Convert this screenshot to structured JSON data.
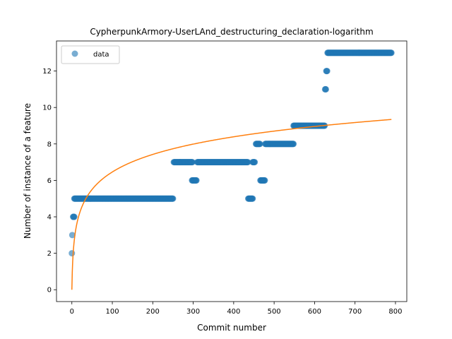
{
  "chart_data": {
    "type": "scatter",
    "title": "CypherpunkArmory-UserLAnd_destructuring_declaration-logarithm",
    "xlabel": "Commit number",
    "ylabel": "Number of instance of a feature",
    "xlim": [
      -38,
      828
    ],
    "ylim": [
      -0.65,
      13.65
    ],
    "xticks": [
      0,
      100,
      200,
      300,
      400,
      500,
      600,
      700,
      800
    ],
    "yticks": [
      0,
      2,
      4,
      6,
      8,
      10,
      12
    ],
    "grid": false,
    "legend": {
      "position": "top-left",
      "entries": [
        "data"
      ]
    },
    "colors": {
      "points": "#1f77b4",
      "fit": "#ff7f0e"
    },
    "series": [
      {
        "name": "data",
        "kind": "scatter",
        "segments": [
          {
            "x_start": 0,
            "x_end": 0,
            "y": 2
          },
          {
            "x_start": 1,
            "x_end": 1,
            "y": 3
          },
          {
            "x_start": 3,
            "x_end": 6,
            "y": 4
          },
          {
            "x_start": 6,
            "x_end": 250,
            "y": 5
          },
          {
            "x_start": 252,
            "x_end": 298,
            "y": 7
          },
          {
            "x_start": 297,
            "x_end": 308,
            "y": 6
          },
          {
            "x_start": 310,
            "x_end": 435,
            "y": 7
          },
          {
            "x_start": 436,
            "x_end": 447,
            "y": 5
          },
          {
            "x_start": 447,
            "x_end": 452,
            "y": 7
          },
          {
            "x_start": 455,
            "x_end": 465,
            "y": 8
          },
          {
            "x_start": 466,
            "x_end": 477,
            "y": 6
          },
          {
            "x_start": 478,
            "x_end": 548,
            "y": 8
          },
          {
            "x_start": 548,
            "x_end": 625,
            "y": 9
          },
          {
            "x_start": 626,
            "x_end": 628,
            "y": 11
          },
          {
            "x_start": 629,
            "x_end": 631,
            "y": 12
          },
          {
            "x_start": 632,
            "x_end": 790,
            "y": 13
          }
        ]
      },
      {
        "kind": "line",
        "model": "logarithmic",
        "a": 1.4,
        "b": 0,
        "x_range": [
          0,
          790
        ]
      }
    ]
  }
}
